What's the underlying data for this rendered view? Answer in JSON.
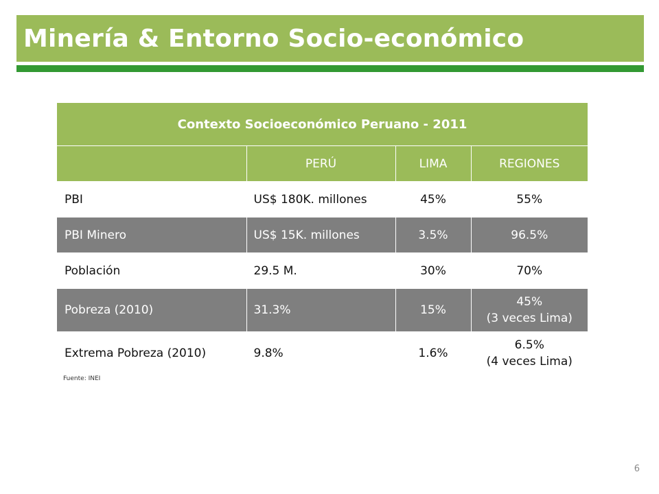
{
  "title": "Minería & Entorno Socio-económico",
  "table": {
    "caption": "Contexto Socioeconómico Peruano - 2011",
    "headers": [
      "",
      "PERÚ",
      "LIMA",
      "REGIONES"
    ],
    "rows": [
      {
        "label": "PBI",
        "peru": "US$ 180K. millones",
        "lima": "45%",
        "regiones_line1": "55%",
        "regiones_line2": ""
      },
      {
        "label": "PBI Minero",
        "peru": "US$ 15K. millones",
        "lima": "3.5%",
        "regiones_line1": "96.5%",
        "regiones_line2": ""
      },
      {
        "label": "Población",
        "peru": "29.5 M.",
        "lima": "30%",
        "regiones_line1": "70%",
        "regiones_line2": ""
      },
      {
        "label": "Pobreza (2010)",
        "peru": "31.3%",
        "lima": "15%",
        "regiones_line1": "45%",
        "regiones_line2": "(3  veces Lima)"
      },
      {
        "label": "Extrema Pobreza (2010)",
        "peru": "9.8%",
        "lima": "1.6%",
        "regiones_line1": "6.5%",
        "regiones_line2": "(4 veces Lima)"
      }
    ]
  },
  "source": "Fuente: INEI",
  "page_number": "6",
  "colors": {
    "accent_green": "#9bbb59",
    "underline_green": "#339933",
    "row_gray": "#7f7f7f"
  }
}
